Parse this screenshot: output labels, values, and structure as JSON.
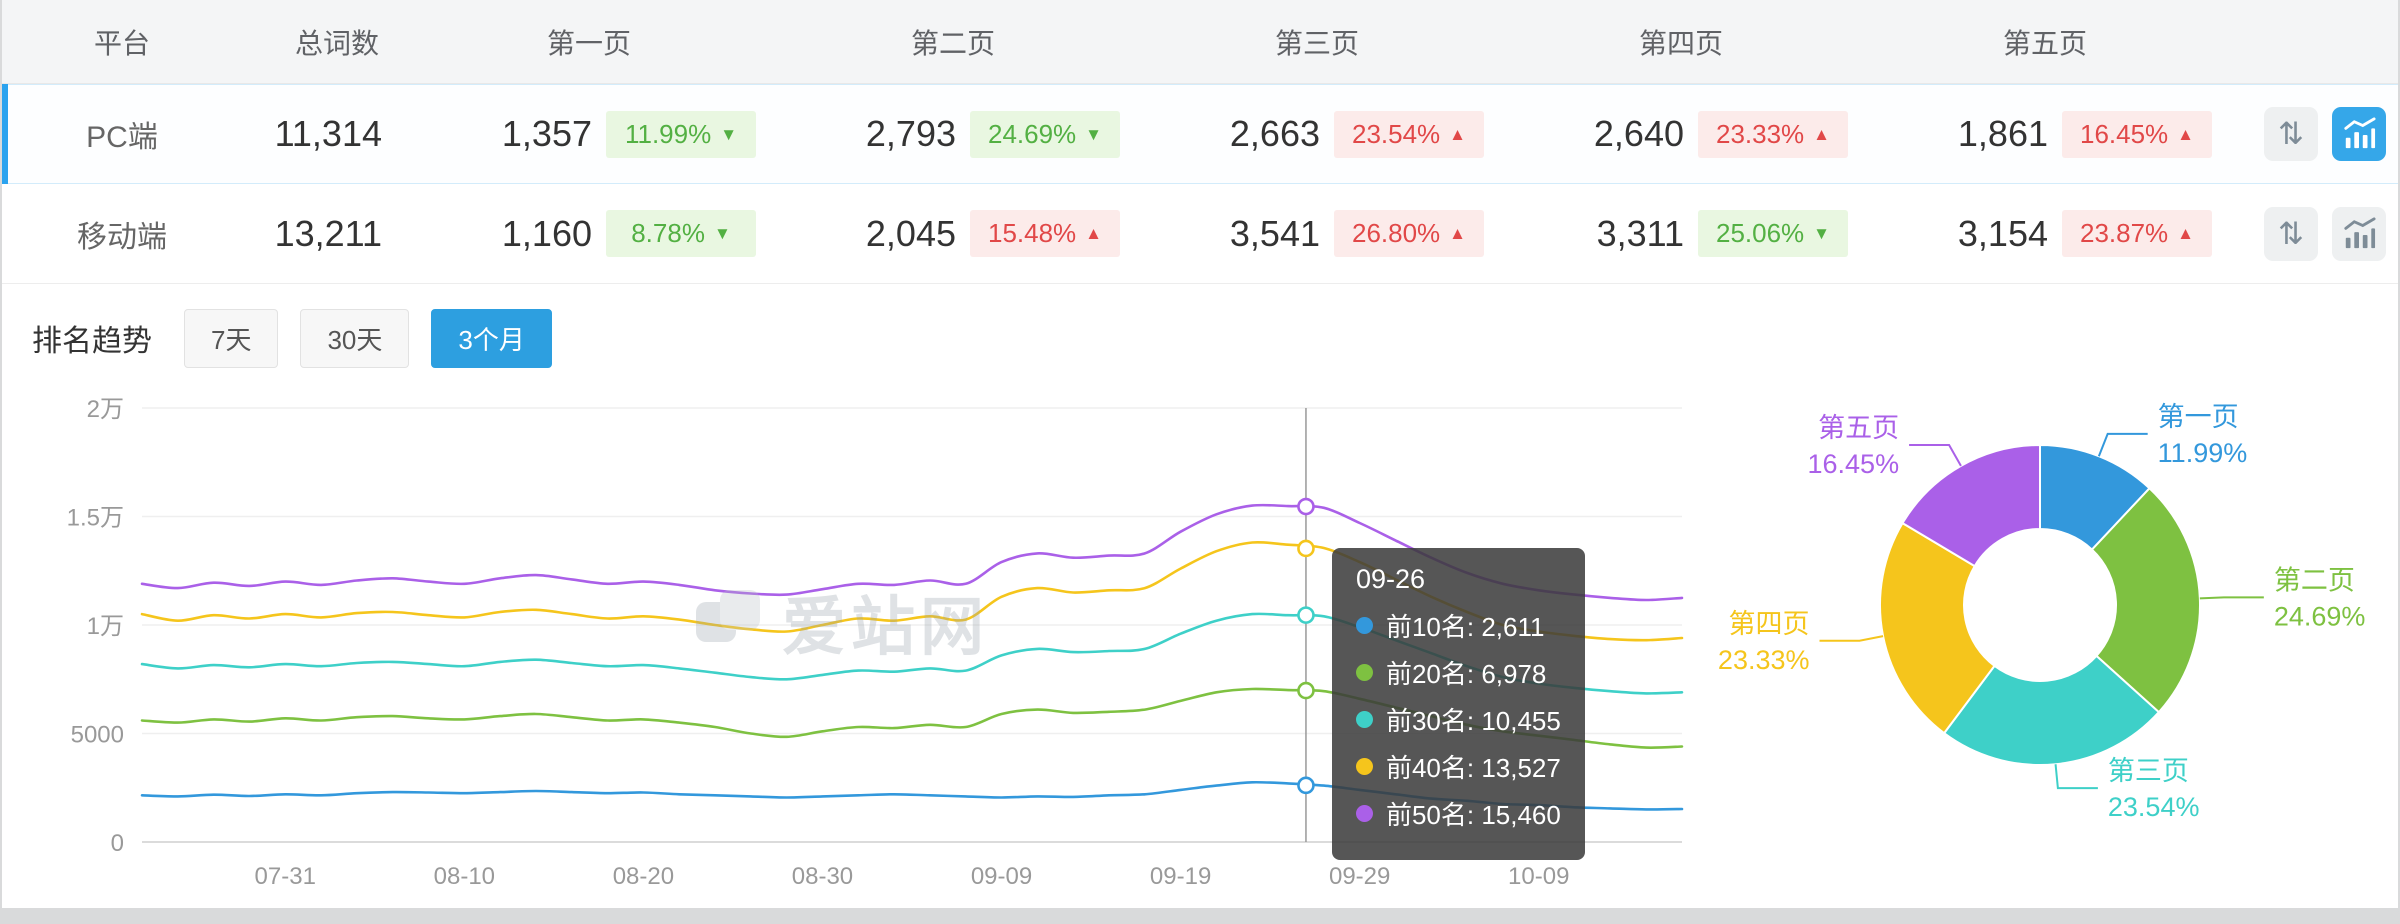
{
  "colors": {
    "accent": "#2d9fe0",
    "badge_green": "#53b043",
    "badge_red": "#e14848",
    "selected_bar": "#2ba3ef"
  },
  "icons": {
    "sort": "⇅"
  },
  "table": {
    "headers": [
      "平台",
      "总词数",
      "第一页",
      "第二页",
      "第三页",
      "第四页",
      "第五页"
    ],
    "rows": [
      {
        "platform": "PC端",
        "total": "11,314",
        "selected": true,
        "pages": [
          {
            "count": "1,357",
            "pct": "11.99%",
            "arrow": "▼",
            "tone": "green"
          },
          {
            "count": "2,793",
            "pct": "24.69%",
            "arrow": "▼",
            "tone": "green"
          },
          {
            "count": "2,663",
            "pct": "23.54%",
            "arrow": "▲",
            "tone": "red"
          },
          {
            "count": "2,640",
            "pct": "23.33%",
            "arrow": "▲",
            "tone": "red"
          },
          {
            "count": "1,861",
            "pct": "16.45%",
            "arrow": "▲",
            "tone": "red"
          }
        ]
      },
      {
        "platform": "移动端",
        "total": "13,211",
        "selected": false,
        "pages": [
          {
            "count": "1,160",
            "pct": "8.78%",
            "arrow": "▼",
            "tone": "green"
          },
          {
            "count": "2,045",
            "pct": "15.48%",
            "arrow": "▲",
            "tone": "red"
          },
          {
            "count": "3,541",
            "pct": "26.80%",
            "arrow": "▲",
            "tone": "red"
          },
          {
            "count": "3,311",
            "pct": "25.06%",
            "arrow": "▼",
            "tone": "green"
          },
          {
            "count": "3,154",
            "pct": "23.87%",
            "arrow": "▲",
            "tone": "red"
          }
        ]
      }
    ]
  },
  "trend": {
    "label": "排名趋势",
    "ranges": [
      {
        "label": "7天"
      },
      {
        "label": "30天"
      },
      {
        "label": "3个月"
      }
    ],
    "active": "3个月"
  },
  "watermark": {
    "text": "爱站网"
  },
  "tooltip": {
    "title": "09-26",
    "items": [
      {
        "text": "前10名: 2,611",
        "color": "#3398dc"
      },
      {
        "text": "前20名: 6,978",
        "color": "#7ec141"
      },
      {
        "text": "前30名: 10,455",
        "color": "#3ed0c8"
      },
      {
        "text": "前40名: 13,527",
        "color": "#f5c51c"
      },
      {
        "text": "前50名: 15,460",
        "color": "#aa60e8"
      }
    ]
  },
  "chart_data": [
    {
      "type": "line",
      "title": "排名趋势 (3个月)",
      "ylim": [
        0,
        20000
      ],
      "y_ticks": [
        {
          "v": 0,
          "label": "0"
        },
        {
          "v": 5000,
          "label": "5000"
        },
        {
          "v": 10000,
          "label": "1万"
        },
        {
          "v": 15000,
          "label": "1.5万"
        },
        {
          "v": 20000,
          "label": "2万"
        }
      ],
      "x_ticks": [
        {
          "day": 8,
          "label": "07-31"
        },
        {
          "day": 18,
          "label": "08-10"
        },
        {
          "day": 28,
          "label": "08-20"
        },
        {
          "day": 38,
          "label": "08-30"
        },
        {
          "day": 48,
          "label": "09-09"
        },
        {
          "day": 58,
          "label": "09-19"
        },
        {
          "day": 68,
          "label": "09-29"
        },
        {
          "day": 78,
          "label": "10-09"
        }
      ],
      "x_days": [
        0,
        2,
        4,
        6,
        8,
        10,
        12,
        14,
        16,
        18,
        20,
        22,
        24,
        26,
        28,
        30,
        32,
        34,
        36,
        38,
        40,
        42,
        44,
        46,
        48,
        50,
        52,
        54,
        56,
        58,
        60,
        62,
        64,
        66,
        68,
        70,
        72,
        74,
        76,
        78,
        80,
        82,
        84,
        86
      ],
      "hover": {
        "day": 65,
        "title": "09-26",
        "values": [
          2611,
          6978,
          10455,
          13527,
          15460
        ]
      },
      "series": [
        {
          "name": "前10名",
          "color": "#3398dc",
          "values": [
            2150,
            2100,
            2180,
            2120,
            2200,
            2150,
            2250,
            2300,
            2280,
            2250,
            2300,
            2350,
            2300,
            2250,
            2280,
            2200,
            2150,
            2100,
            2050,
            2100,
            2150,
            2200,
            2150,
            2100,
            2050,
            2100,
            2080,
            2150,
            2200,
            2400,
            2600,
            2750,
            2700,
            2600,
            2400,
            2200,
            2000,
            1900,
            1750,
            1700,
            1600,
            1550,
            1500,
            1520
          ]
        },
        {
          "name": "前20名",
          "color": "#7ec141",
          "values": [
            5600,
            5500,
            5650,
            5550,
            5700,
            5600,
            5750,
            5800,
            5700,
            5650,
            5800,
            5900,
            5750,
            5600,
            5650,
            5500,
            5300,
            5000,
            4850,
            5100,
            5300,
            5250,
            5400,
            5300,
            5900,
            6100,
            5950,
            6000,
            6100,
            6500,
            6900,
            7050,
            7000,
            6950,
            6600,
            6200,
            5800,
            5400,
            5100,
            4900,
            4700,
            4500,
            4350,
            4400
          ]
        },
        {
          "name": "前30名",
          "color": "#3ed0c8",
          "values": [
            8200,
            8000,
            8150,
            8050,
            8200,
            8100,
            8250,
            8300,
            8200,
            8100,
            8300,
            8400,
            8250,
            8100,
            8150,
            8000,
            7800,
            7600,
            7500,
            7700,
            7900,
            7850,
            8000,
            7900,
            8600,
            8900,
            8750,
            8800,
            8900,
            9600,
            10200,
            10500,
            10450,
            10400,
            9900,
            9300,
            8700,
            8100,
            7600,
            7300,
            7100,
            6950,
            6850,
            6900
          ]
        },
        {
          "name": "前40名",
          "color": "#f5c51c",
          "values": [
            10500,
            10200,
            10450,
            10300,
            10500,
            10350,
            10550,
            10600,
            10450,
            10350,
            10600,
            10700,
            10500,
            10300,
            10400,
            10250,
            10000,
            9800,
            9700,
            10000,
            10300,
            10200,
            10400,
            10250,
            11300,
            11700,
            11500,
            11600,
            11700,
            12600,
            13400,
            13800,
            13700,
            13550,
            12900,
            12100,
            11300,
            10600,
            10000,
            9700,
            9500,
            9350,
            9300,
            9400
          ]
        },
        {
          "name": "前50名",
          "color": "#aa60e8",
          "values": [
            11900,
            11700,
            11950,
            11800,
            12000,
            11850,
            12050,
            12150,
            12000,
            11900,
            12150,
            12300,
            12100,
            11900,
            12000,
            11850,
            11600,
            11450,
            11400,
            11650,
            11900,
            11850,
            12050,
            11900,
            12900,
            13300,
            13100,
            13200,
            13300,
            14300,
            15100,
            15500,
            15480,
            15400,
            14700,
            13900,
            13100,
            12400,
            11900,
            11600,
            11400,
            11250,
            11150,
            11250
          ]
        }
      ]
    },
    {
      "type": "pie",
      "donut": true,
      "labels": [
        "第一页",
        "第二页",
        "第三页",
        "第四页",
        "第五页"
      ],
      "values": [
        11.99,
        24.69,
        23.54,
        23.33,
        16.45
      ],
      "unit": "%",
      "colors": [
        "#3398dc",
        "#7ec141",
        "#3ed0c8",
        "#f5c51c",
        "#aa60e8"
      ],
      "legend_position": "outside-labels"
    }
  ]
}
